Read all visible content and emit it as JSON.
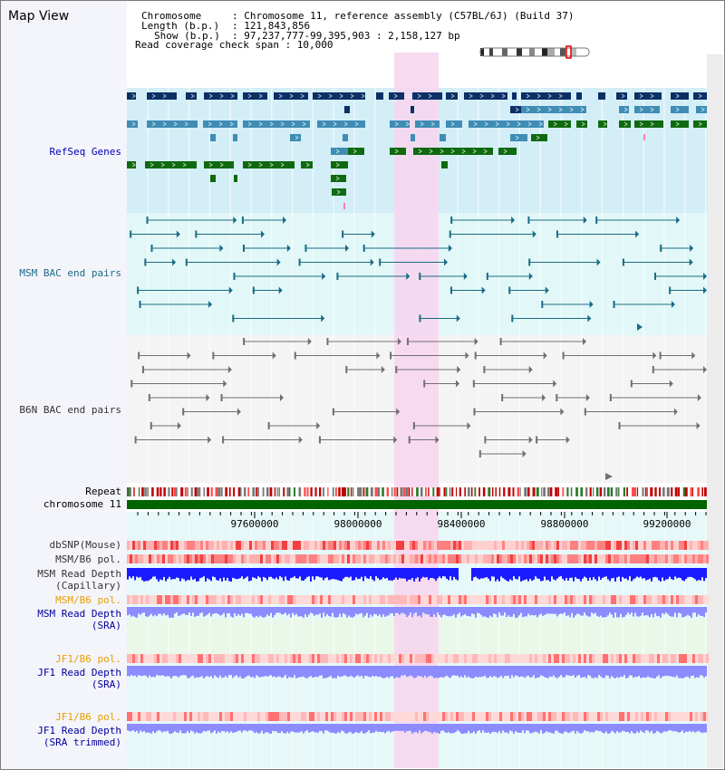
{
  "title": "Map View",
  "info": {
    "chromosome_key": "Chromosome",
    "chromosome_val": ": Chromosome 11, reference assembly (C57BL/6J) (Build 37)",
    "length_key": "Length (b.p.)",
    "length_val": ": 121,843,856",
    "show_key": "Show (b.p.)",
    "show_val": ": 97,237,777-99,395,903 : 2,158,127 bp",
    "coverage": "Read coverage check span : 10,000"
  },
  "tracks": {
    "refseq": "RefSeq Genes",
    "msm_bac": "MSM BAC end pairs",
    "b6n_bac": "B6N BAC end pairs",
    "repeat": "Repeat",
    "chromosome": "chromosome 11",
    "dbsnp": "dbSNP(Mouse)",
    "msm_b6_pol_1": "MSM/B6 pol.",
    "msm_depth_cap_1": "MSM Read Depth",
    "msm_depth_cap_2": "(Capillary)",
    "msm_b6_pol_2": "MSM/B6 pol.",
    "msm_depth_sra_1": "MSM Read Depth",
    "msm_depth_sra_2": "(SRA)",
    "jf1_b6_pol_1": "JF1/B6 pol.",
    "jf1_depth_sra_1": "JF1 Read Depth",
    "jf1_depth_sra_2": "(SRA)",
    "jf1_b6_pol_2": "JF1/B6 pol.",
    "jf1_depth_trim_1": "JF1 Read Depth",
    "jf1_depth_trim_2": "(SRA trimmed)"
  },
  "axis": {
    "ticks": [
      "97600000",
      "98000000",
      "98400000",
      "98800000",
      "99200000"
    ]
  },
  "colors": {
    "highlight": "#f7d5ef",
    "gene_navy": "#0b2f66",
    "gene_steel": "#3f8db5",
    "gene_green": "#0f6a0f",
    "bac_teal": "#1a6b86",
    "bac_grey": "#707070",
    "chromosome": "#006400",
    "snp_red": "#e83a3a",
    "depth_blue": "#1a1aff",
    "depth_lavender": "#8c8cff"
  }
}
